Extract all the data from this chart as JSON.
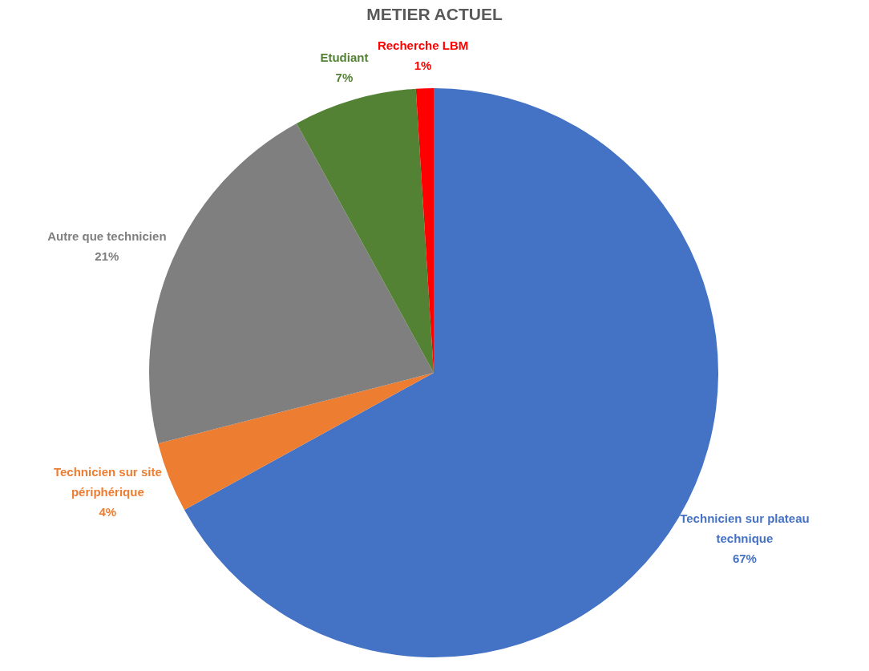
{
  "chart_data": {
    "type": "pie",
    "title": "METIER ACTUEL",
    "categories": [
      "Technicien sur plateau technique",
      "Technicien sur site périphérique",
      "Autre que technicien",
      "Etudiant",
      "Recherche LBM"
    ],
    "values": [
      67,
      4,
      21,
      7,
      1
    ],
    "colors": [
      "#4472c4",
      "#ed7d31",
      "#7f7f7f",
      "#548235",
      "#ff0000"
    ],
    "value_labels": [
      "67%",
      "4%",
      "21%",
      "7%",
      "1%"
    ]
  }
}
